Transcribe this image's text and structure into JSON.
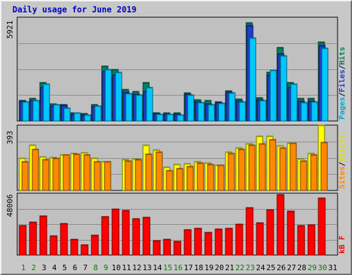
{
  "chart_data": [
    {
      "type": "bar",
      "title": "Daily usage for June 2019",
      "categories": [
        "1",
        "2",
        "3",
        "4",
        "5",
        "6",
        "7",
        "8",
        "9",
        "10",
        "11",
        "12",
        "13",
        "14",
        "15",
        "16",
        "17",
        "18",
        "19",
        "20",
        "21",
        "22",
        "23",
        "24",
        "25",
        "26",
        "27",
        "28",
        "29",
        "30",
        "31"
      ],
      "weekend_days": [
        "1",
        "2",
        "8",
        "9",
        "15",
        "16",
        "22",
        "23",
        "29",
        "30"
      ],
      "ylim": [
        0,
        5921
      ],
      "ymax_label": "5921",
      "series": [
        {
          "name": "Pages",
          "color": "#008060",
          "values": [
            1170,
            1280,
            2180,
            970,
            950,
            460,
            450,
            960,
            3120,
            2940,
            1800,
            1690,
            2180,
            470,
            470,
            460,
            1590,
            1230,
            1160,
            1090,
            1710,
            1260,
            5600,
            1320,
            2800,
            4200,
            2200,
            1290,
            1290,
            4520,
            0
          ]
        },
        {
          "name": "Files",
          "color": "#1f3ec8",
          "values": [
            1130,
            1180,
            1920,
            850,
            890,
            400,
            350,
            830,
            2830,
            2630,
            1660,
            1530,
            1670,
            420,
            410,
            400,
            1520,
            1080,
            970,
            1040,
            1660,
            1120,
            5470,
            1200,
            2620,
            3850,
            1930,
            1150,
            1120,
            4320,
            0
          ]
        },
        {
          "name": "Hits",
          "color": "#00c8ff",
          "values": [
            1080,
            1180,
            2100,
            960,
            760,
            460,
            340,
            870,
            2960,
            2780,
            1550,
            1480,
            1920,
            400,
            400,
            370,
            1480,
            1050,
            950,
            1000,
            1590,
            1100,
            4750,
            1160,
            2920,
            3720,
            2100,
            1060,
            1080,
            4150,
            0
          ]
        }
      ],
      "y_axis_labels": [
        {
          "text": "Pages",
          "color": "#00a8d8"
        },
        {
          "text": "Files",
          "color": "#1f3ec8"
        },
        {
          "text": "Hits",
          "color": "#008060"
        }
      ],
      "x_axis_labels": [
        "1",
        "2",
        "3",
        "4",
        "5",
        "6",
        "7",
        "8",
        "9",
        "10",
        "11",
        "12",
        "13",
        "14",
        "15",
        "16",
        "17",
        "18",
        "19",
        "20",
        "21",
        "22",
        "23",
        "24",
        "25",
        "26",
        "27",
        "28",
        "29",
        "30",
        "31"
      ]
    },
    {
      "type": "bar",
      "ylim": [
        0,
        393
      ],
      "ymax_label": "393",
      "series": [
        {
          "name": "Visits",
          "color": "#ffff00",
          "values": [
            195,
            271,
            203,
            199,
            217,
            225,
            229,
            193,
            175,
            0,
            185,
            190,
            271,
            246,
            140,
            158,
            162,
            173,
            166,
            155,
            232,
            255,
            282,
            327,
            326,
            269,
            286,
            191,
            223,
            393,
            0
          ]
        },
        {
          "name": "Sites",
          "color": "#ff8800",
          "values": [
            175,
            248,
            187,
            193,
            214,
            219,
            215,
            172,
            172,
            0,
            178,
            187,
            221,
            233,
            118,
            131,
            144,
            167,
            158,
            151,
            222,
            250,
            271,
            282,
            306,
            256,
            286,
            179,
            217,
            289,
            0
          ]
        }
      ],
      "y_axis_labels": [
        {
          "text": "Sites",
          "color": "#ff8800"
        },
        {
          "text": "Visits",
          "color": "#e0e000"
        }
      ]
    },
    {
      "type": "bar",
      "ylim": [
        0,
        48006
      ],
      "ymax_label": "48006",
      "series": [
        {
          "name": "KBytes",
          "color": "#ff0000",
          "values": [
            22700,
            25800,
            30200,
            14700,
            24400,
            12400,
            8000,
            15700,
            29800,
            35700,
            34900,
            28200,
            29200,
            11200,
            12400,
            10900,
            19800,
            20600,
            17400,
            20500,
            21000,
            24000,
            36600,
            25100,
            35400,
            46900,
            34400,
            22700,
            23400,
            44500,
            0
          ]
        }
      ],
      "y_axis_labels": [
        {
          "text": "kB F",
          "color": "#ff0000"
        }
      ]
    }
  ]
}
